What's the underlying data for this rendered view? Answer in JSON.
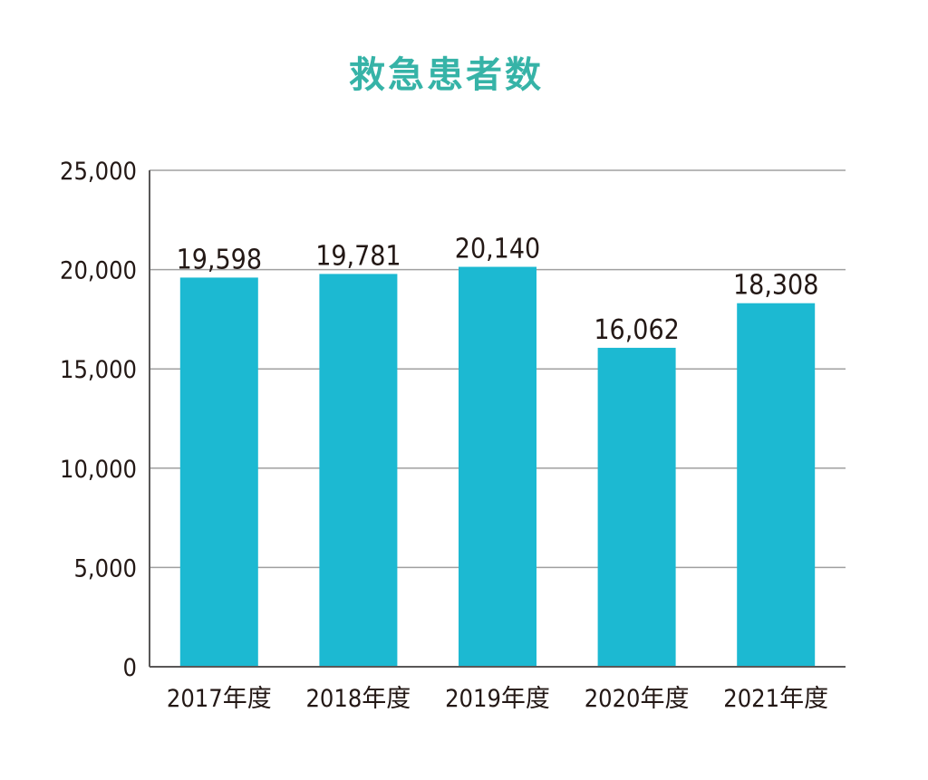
{
  "colors": {
    "title": "#36b3a7",
    "bar": "#1cb9d2",
    "grid": "#a0a0a0",
    "axis": "#595757",
    "text": "#231815"
  },
  "chart_data": {
    "type": "bar",
    "title": "救急患者数",
    "xlabel": "",
    "ylabel": "",
    "categories": [
      "2017年度",
      "2018年度",
      "2019年度",
      "2020年度",
      "2021年度"
    ],
    "values": [
      19598,
      19781,
      20140,
      16062,
      18308
    ],
    "value_labels": [
      "19,598",
      "19,781",
      "20,140",
      "16,062",
      "18,308"
    ],
    "ylim": [
      0,
      25000
    ],
    "yticks": [
      0,
      5000,
      10000,
      15000,
      20000,
      25000
    ],
    "ytick_labels": [
      "0",
      "5,000",
      "10,000",
      "15,000",
      "20,000",
      "25,000"
    ],
    "grid": true,
    "legend": "none"
  }
}
